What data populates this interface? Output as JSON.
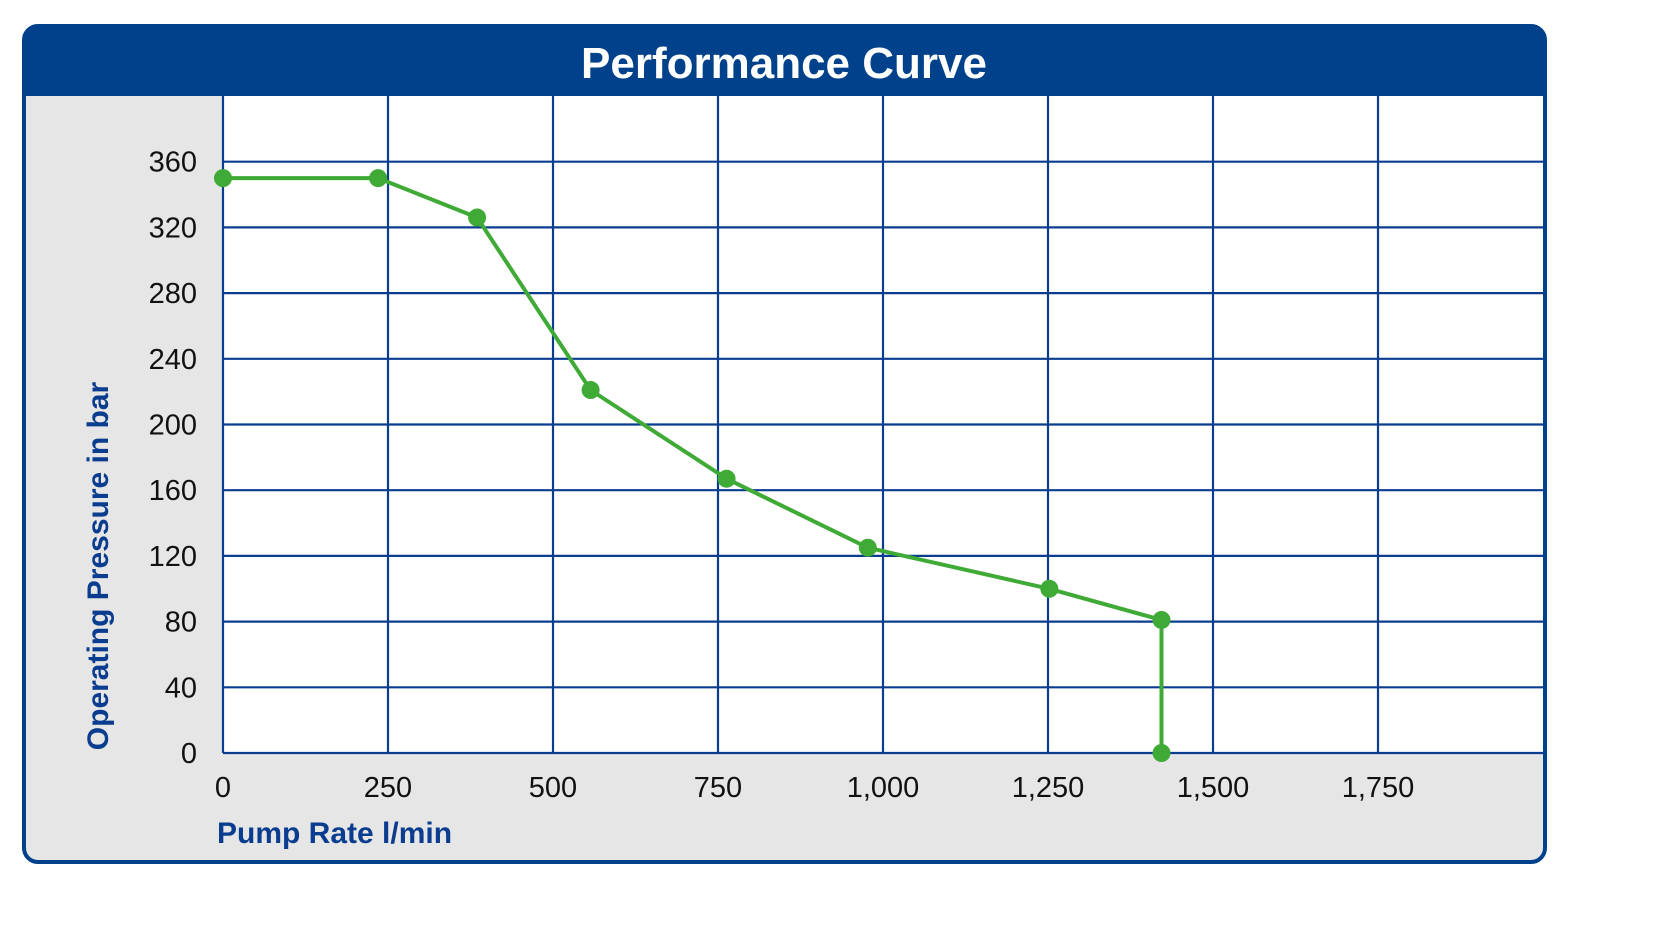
{
  "colors": {
    "frame": "#00418b",
    "plot_background": "#ffffff",
    "panel_background": "#e6e6e6",
    "grid": "#0a3d8f",
    "line": "#3faa35",
    "label": "#0a3d8f"
  },
  "chart_data": {
    "type": "line",
    "title": "Performance Curve",
    "xlabel": "Pump Rate l/min",
    "ylabel": "Operating Pressure in bar",
    "xlim": [
      0,
      2000
    ],
    "ylim": [
      0,
      400
    ],
    "x_ticks": [
      0,
      250,
      500,
      750,
      1000,
      1250,
      1500,
      1750
    ],
    "x_tick_labels": [
      "0",
      "250",
      "500",
      "750",
      "1,000",
      "1,250",
      "1,500",
      "1,750"
    ],
    "y_ticks": [
      0,
      40,
      80,
      120,
      160,
      200,
      240,
      280,
      320,
      360
    ],
    "y_tick_labels": [
      "0",
      "40",
      "80",
      "120",
      "160",
      "200",
      "240",
      "280",
      "320",
      "360"
    ],
    "grid": true,
    "legend": "none",
    "series": [
      {
        "x": [
          0,
          235,
          385,
          557,
          763,
          977,
          1252,
          1422,
          1422
        ],
        "y": [
          350,
          350,
          326,
          221,
          167,
          125,
          100,
          81,
          0
        ]
      }
    ]
  }
}
